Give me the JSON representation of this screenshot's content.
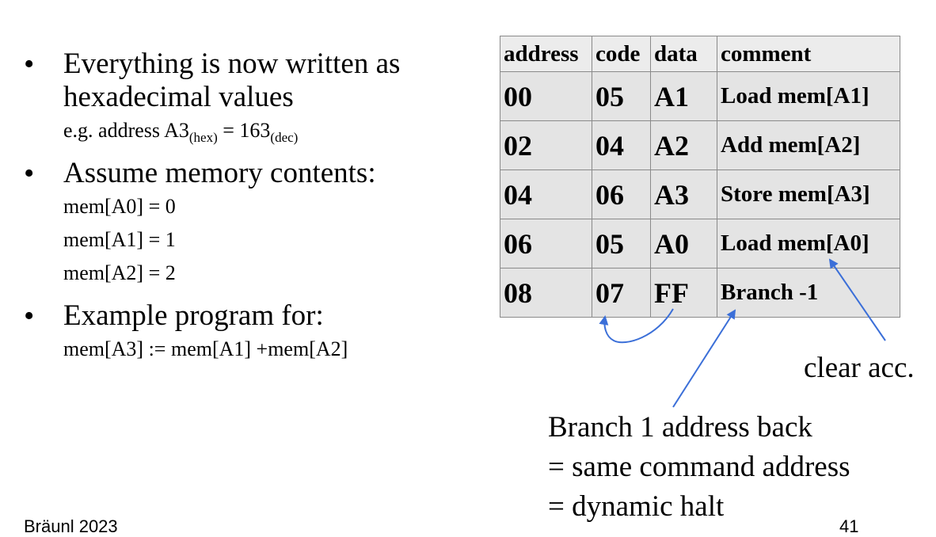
{
  "bullets": [
    {
      "lines": [
        "Everything is now written as",
        "hexadecimal values"
      ],
      "sub_prefix": "e.g. address A3",
      "sub_hex": "(hex)",
      "sub_mid": " = 163",
      "sub_dec": "(dec)"
    },
    {
      "lines": [
        "Assume memory contents:"
      ],
      "subs": [
        "mem[A0] = 0",
        "mem[A1] = 1",
        "mem[A2] = 2"
      ]
    },
    {
      "lines": [
        "Example program for:"
      ],
      "subs": [
        "mem[A3] := mem[A1] +mem[A2]"
      ]
    }
  ],
  "table": {
    "headers": [
      "address",
      "code",
      "data",
      "comment"
    ],
    "rows": [
      [
        "00",
        "05",
        "A1",
        "Load mem[A1]"
      ],
      [
        "02",
        "04",
        "A2",
        "Add mem[A2]"
      ],
      [
        "04",
        "06",
        "A3",
        "Store mem[A3]"
      ],
      [
        "06",
        "05",
        "A0",
        "Load mem[A0]"
      ],
      [
        "08",
        "07",
        "FF",
        "Branch -1"
      ]
    ]
  },
  "annotations": {
    "clear": "clear acc.",
    "branch": [
      "Branch 1 address back",
      "= same command address",
      "= dynamic halt"
    ]
  },
  "footer": {
    "author": "Bräunl 2023",
    "page": "41"
  },
  "colors": {
    "arrow": "#3b6fd8",
    "table_bg": "#e4e4e4",
    "table_border": "#8a8a8a"
  }
}
